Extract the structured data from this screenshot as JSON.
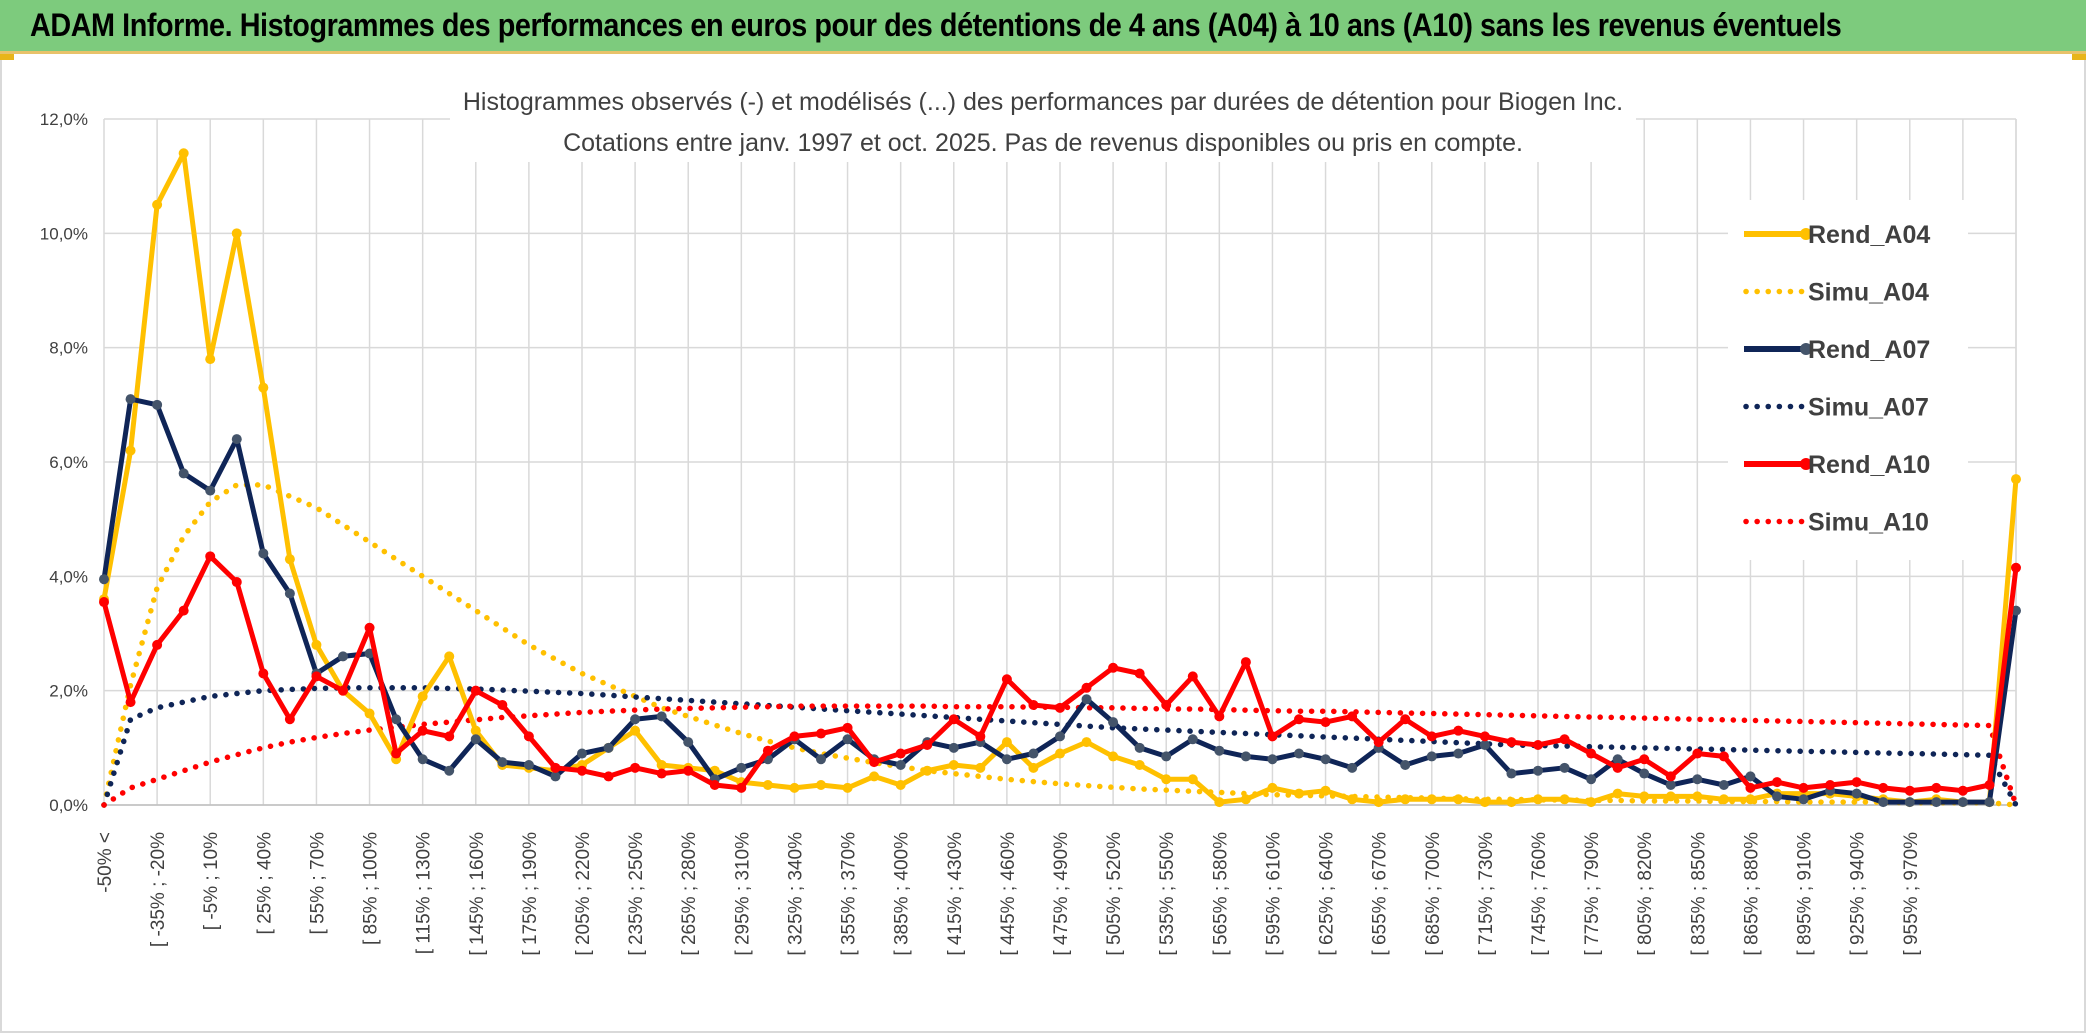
{
  "banner": {
    "title": "ADAM Informe. Histogrammes des performances en euros pour des détentions de 4 ans (A04) à 10 ans (A10) sans les revenus éventuels"
  },
  "chart_data": {
    "type": "line",
    "title": "Histogrammes observés (-) et modélisés (...) des performances par durées de détention pour Biogen Inc.",
    "subtitle": "Cotations entre janv. 1997 et oct. 2025. Pas de revenus disponibles ou pris en compte.",
    "xlabel": "",
    "ylabel": "",
    "ylim": [
      0,
      12
    ],
    "y_ticks": [
      "0,0%",
      "2,0%",
      "4,0%",
      "6,0%",
      "8,0%",
      "10,0%",
      "12,0%"
    ],
    "grid": true,
    "legend_position": "right",
    "x_tick_labels": [
      "-50% <",
      "[ -35% ; -20%",
      "[ -5% ; 10%",
      "[ 25% ; 40%",
      "[ 55% ; 70%",
      "[ 85% ; 100%",
      "[ 115% ; 130%",
      "[ 145% ; 160%",
      "[ 175% ; 190%",
      "[ 205% ; 220%",
      "[ 235% ; 250%",
      "[ 265% ; 280%",
      "[ 295% ; 310%",
      "[ 325% ; 340%",
      "[ 355% ; 370%",
      "[ 385% ; 400%",
      "[ 415% ; 430%",
      "[ 445% ; 460%",
      "[ 475% ; 490%",
      "[ 505% ; 520%",
      "[ 535% ; 550%",
      "[ 565% ; 580%",
      "[ 595% ; 610%",
      "[ 625% ; 640%",
      "[ 655% ; 670%",
      "[ 685% ; 700%",
      "[ 715% ; 730%",
      "[ 745% ; 760%",
      "[ 775% ; 790%",
      "[ 805% ; 820%",
      "[ 835% ; 850%",
      "[ 865% ; 880%",
      "[ 895% ; 910%",
      "[ 925% ; 940%",
      "[ 955% ; 970%"
    ],
    "series": [
      {
        "name": "Rend_A04",
        "style": "solid",
        "markers": true,
        "color": "#ffc000",
        "values": [
          3.6,
          6.2,
          10.5,
          11.4,
          7.8,
          10.0,
          7.3,
          4.3,
          2.8,
          2.0,
          1.6,
          0.8,
          1.9,
          2.6,
          1.3,
          0.7,
          0.65,
          0.6,
          0.7,
          1.0,
          1.3,
          0.7,
          0.65,
          0.6,
          0.4,
          0.35,
          0.3,
          0.35,
          0.3,
          0.5,
          0.35,
          0.6,
          0.7,
          0.65,
          1.1,
          0.65,
          0.9,
          1.1,
          0.85,
          0.7,
          0.45,
          0.45,
          0.05,
          0.1,
          0.3,
          0.2,
          0.25,
          0.1,
          0.05,
          0.1,
          0.1,
          0.1,
          0.05,
          0.05,
          0.1,
          0.1,
          0.05,
          0.2,
          0.15,
          0.15,
          0.15,
          0.1,
          0.1,
          0.2,
          0.2,
          0.2,
          0.15,
          0.1,
          0.05,
          0.1,
          0.05,
          0.05,
          5.7
        ]
      },
      {
        "name": "Simu_A04",
        "style": "dotted",
        "markers": false,
        "color": "#ffc000",
        "values": [
          0.0,
          2.1,
          3.8,
          4.7,
          5.3,
          5.6,
          5.6,
          5.4,
          5.2,
          4.9,
          4.6,
          4.3,
          4.0,
          3.7,
          3.4,
          3.1,
          2.8,
          2.55,
          2.3,
          2.1,
          1.9,
          1.7,
          1.55,
          1.4,
          1.25,
          1.12,
          1.0,
          0.9,
          0.82,
          0.74,
          0.67,
          0.6,
          0.55,
          0.5,
          0.45,
          0.41,
          0.37,
          0.34,
          0.31,
          0.28,
          0.26,
          0.24,
          0.22,
          0.2,
          0.18,
          0.17,
          0.16,
          0.15,
          0.14,
          0.13,
          0.12,
          0.11,
          0.1,
          0.1,
          0.09,
          0.09,
          0.08,
          0.08,
          0.07,
          0.07,
          0.07,
          0.06,
          0.06,
          0.06,
          0.05,
          0.05,
          0.05,
          0.05,
          0.04,
          0.04,
          0.04,
          0.04,
          0.0
        ]
      },
      {
        "name": "Rend_A07",
        "style": "solid",
        "markers": true,
        "color": "#0f2557",
        "values": [
          3.95,
          7.1,
          7.0,
          5.8,
          5.5,
          6.4,
          4.4,
          3.7,
          2.3,
          2.6,
          2.65,
          1.5,
          0.8,
          0.6,
          1.15,
          0.75,
          0.7,
          0.5,
          0.9,
          1.0,
          1.5,
          1.55,
          1.1,
          0.45,
          0.65,
          0.8,
          1.15,
          0.8,
          1.15,
          0.8,
          0.7,
          1.1,
          1.0,
          1.1,
          0.8,
          0.9,
          1.2,
          1.85,
          1.45,
          1.0,
          0.85,
          1.15,
          0.95,
          0.85,
          0.8,
          0.9,
          0.8,
          0.65,
          1.0,
          0.7,
          0.85,
          0.9,
          1.05,
          0.55,
          0.6,
          0.65,
          0.45,
          0.8,
          0.55,
          0.35,
          0.45,
          0.35,
          0.5,
          0.15,
          0.1,
          0.25,
          0.2,
          0.05,
          0.05,
          0.05,
          0.05,
          0.05,
          3.4
        ]
      },
      {
        "name": "Simu_A07",
        "style": "dotted",
        "markers": false,
        "color": "#0f2557",
        "values": [
          0.0,
          1.5,
          1.7,
          1.8,
          1.9,
          1.95,
          2.0,
          2.02,
          2.04,
          2.05,
          2.05,
          2.05,
          2.05,
          2.04,
          2.03,
          2.01,
          1.99,
          1.97,
          1.95,
          1.92,
          1.89,
          1.86,
          1.83,
          1.8,
          1.77,
          1.74,
          1.71,
          1.68,
          1.65,
          1.62,
          1.59,
          1.56,
          1.53,
          1.5,
          1.47,
          1.44,
          1.41,
          1.38,
          1.35,
          1.33,
          1.31,
          1.29,
          1.27,
          1.25,
          1.23,
          1.21,
          1.19,
          1.17,
          1.15,
          1.13,
          1.11,
          1.09,
          1.07,
          1.05,
          1.04,
          1.03,
          1.02,
          1.01,
          1.0,
          0.99,
          0.98,
          0.97,
          0.96,
          0.95,
          0.94,
          0.93,
          0.92,
          0.91,
          0.9,
          0.89,
          0.88,
          0.87,
          0.0
        ]
      },
      {
        "name": "Rend_A10",
        "style": "solid",
        "markers": true,
        "color": "#ff0000",
        "values": [
          3.55,
          1.8,
          2.8,
          3.4,
          4.35,
          3.9,
          2.3,
          1.5,
          2.25,
          2.0,
          3.1,
          0.9,
          1.3,
          1.2,
          2.0,
          1.75,
          1.2,
          0.65,
          0.6,
          0.5,
          0.65,
          0.55,
          0.6,
          0.35,
          0.3,
          0.95,
          1.2,
          1.25,
          1.35,
          0.75,
          0.9,
          1.05,
          1.5,
          1.2,
          2.2,
          1.75,
          1.7,
          2.05,
          2.4,
          2.3,
          1.75,
          2.25,
          1.55,
          2.5,
          1.2,
          1.5,
          1.45,
          1.55,
          1.1,
          1.5,
          1.2,
          1.3,
          1.2,
          1.1,
          1.05,
          1.15,
          0.9,
          0.65,
          0.8,
          0.5,
          0.9,
          0.85,
          0.3,
          0.4,
          0.3,
          0.35,
          0.4,
          0.3,
          0.25,
          0.3,
          0.25,
          0.35,
          4.15
        ]
      },
      {
        "name": "Simu_A10",
        "style": "dotted",
        "markers": false,
        "color": "#ff0000",
        "values": [
          0.0,
          0.3,
          0.45,
          0.6,
          0.75,
          0.88,
          1.0,
          1.1,
          1.18,
          1.25,
          1.31,
          1.36,
          1.41,
          1.45,
          1.49,
          1.53,
          1.56,
          1.59,
          1.62,
          1.64,
          1.66,
          1.68,
          1.69,
          1.7,
          1.71,
          1.72,
          1.73,
          1.73,
          1.73,
          1.73,
          1.73,
          1.73,
          1.72,
          1.72,
          1.72,
          1.71,
          1.71,
          1.7,
          1.7,
          1.69,
          1.68,
          1.68,
          1.67,
          1.66,
          1.65,
          1.64,
          1.64,
          1.63,
          1.62,
          1.61,
          1.6,
          1.59,
          1.58,
          1.57,
          1.56,
          1.55,
          1.54,
          1.53,
          1.52,
          1.51,
          1.5,
          1.49,
          1.48,
          1.47,
          1.46,
          1.45,
          1.44,
          1.43,
          1.42,
          1.41,
          1.4,
          1.39,
          0.0
        ]
      }
    ]
  }
}
